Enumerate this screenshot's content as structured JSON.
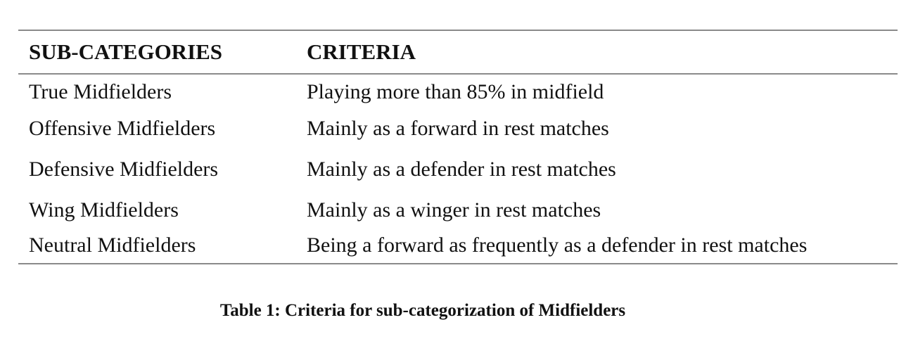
{
  "table": {
    "headers": {
      "subcategory": "SUB-CATEGORIES",
      "criteria": "CRITERIA"
    },
    "rows": [
      {
        "subcategory": "True Midfielders",
        "criteria": "Playing more than 85% in midfield"
      },
      {
        "subcategory": "Offensive Midfielders",
        "criteria": "Mainly as a forward in rest matches"
      },
      {
        "subcategory": "Defensive Midfielders",
        "criteria": "Mainly as a defender in rest matches"
      },
      {
        "subcategory": "Wing Midfielders",
        "criteria": "Mainly as a winger in rest matches"
      },
      {
        "subcategory": "Neutral Midfielders",
        "criteria": "Being a forward as frequently as a defender in rest matches"
      }
    ]
  },
  "caption": "Table 1: Criteria for sub-categorization of Midfielders"
}
